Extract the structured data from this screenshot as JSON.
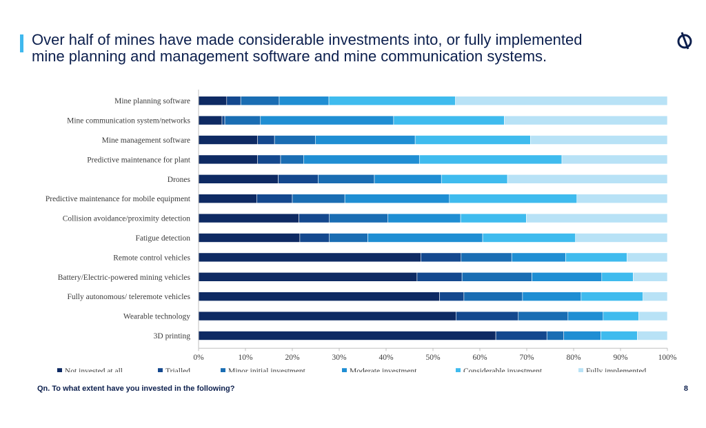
{
  "header": {
    "title": "Over half of mines have made considerable investments into, or fully implemented\nmine planning and management software and mine communication systems."
  },
  "footer": {
    "question": "Qn. To what extent have you invested in the following?",
    "page_number": "8"
  },
  "logo": {
    "icon": "brand-logo-icon",
    "color": "#0c1f4d"
  },
  "colors": {
    "accent": "#3fb8ee",
    "title": "#0c1f4d"
  },
  "chart_data": {
    "type": "bar",
    "orientation": "horizontal",
    "stacked": true,
    "percent": true,
    "categories": [
      "Mine planning software",
      "Mine communication system/networks",
      "Mine management software",
      "Predictive maintenance for plant",
      "Drones",
      "Predictive maintenance for mobile equipment",
      "Collision avoidance/proximity detection",
      "Fatigue detection",
      "Remote control vehicles",
      "Battery/Electric-powered mining vehicles",
      "Fully autonomous/ teleremote vehicles",
      "Wearable technology",
      "3D printing"
    ],
    "series": [
      {
        "name": "Not invested at all",
        "color": "#0e2a63",
        "values": [
          6,
          5,
          12.6,
          12.6,
          17,
          12.4,
          21.4,
          21.6,
          47.4,
          46.6,
          51.4,
          54.9,
          63.4
        ]
      },
      {
        "name": "Trialled",
        "color": "#14488e",
        "values": [
          3,
          0.6,
          3.6,
          4.9,
          8.5,
          7.6,
          6.5,
          6.3,
          8.6,
          9.6,
          5.2,
          13.3,
          10.9
        ]
      },
      {
        "name": "Minor initial investment",
        "color": "#1a6db3",
        "values": [
          8.2,
          7.6,
          8.7,
          4.9,
          12,
          11.2,
          12.5,
          8.2,
          10.8,
          14.9,
          12.5,
          10.6,
          3.6
        ]
      },
      {
        "name": "Moderate investment",
        "color": "#1f8ed3",
        "values": [
          10.6,
          28.4,
          21.3,
          24.7,
          14.3,
          22.3,
          15.5,
          24.5,
          11.5,
          14.9,
          12.5,
          7.5,
          7.9
        ]
      },
      {
        "name": "Considerable investment",
        "color": "#3fbbee",
        "values": [
          27,
          23.6,
          24.6,
          30.4,
          14.1,
          27.2,
          14,
          19.8,
          13.1,
          6.7,
          13.2,
          7.6,
          7.8
        ]
      },
      {
        "name": "Fully implemented",
        "color": "#b8e2f6",
        "values": [
          45.2,
          34.8,
          29.2,
          22.5,
          34.1,
          19.3,
          30.1,
          19.6,
          8.6,
          7.3,
          5.2,
          6.1,
          6.4
        ]
      }
    ],
    "xlim": [
      0,
      100
    ],
    "xticks": [
      "0%",
      "10%",
      "20%",
      "30%",
      "40%",
      "50%",
      "60%",
      "70%",
      "80%",
      "90%",
      "100%"
    ],
    "grid": false,
    "legend_position": "bottom"
  }
}
